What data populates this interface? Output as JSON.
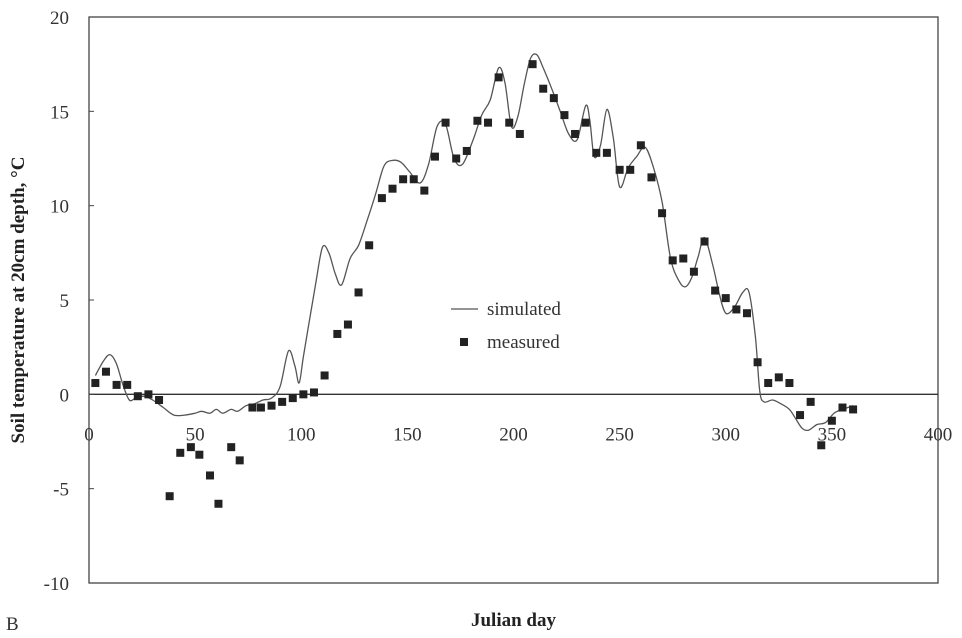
{
  "panel_label": "B",
  "chart_data": {
    "type": "line",
    "title": "",
    "xlabel": "Julian day",
    "ylabel": "Soil temperature at 20cm depth, °C",
    "xlim": [
      0,
      400
    ],
    "ylim": [
      -10,
      20
    ],
    "x_ticks": [
      0,
      50,
      100,
      150,
      200,
      250,
      300,
      350,
      400
    ],
    "y_ticks": [
      -10,
      -5,
      0,
      5,
      10,
      15,
      20
    ],
    "zero_line": true,
    "grid": false,
    "legend_position": "center",
    "series": [
      {
        "name": "simulated",
        "style": "line",
        "color": "#555555",
        "x": [
          3,
          7,
          10,
          13,
          16,
          19,
          22,
          26,
          30,
          35,
          40,
          45,
          50,
          53,
          57,
          60,
          63,
          67,
          70,
          74,
          78,
          82,
          86,
          90,
          94,
          97,
          99,
          101,
          104,
          107,
          110,
          113,
          116,
          119,
          123,
          127,
          131,
          135,
          139,
          143,
          147,
          151,
          156,
          160,
          164,
          168,
          172,
          176,
          181,
          185,
          189,
          193,
          196,
          199,
          202,
          205,
          208,
          211,
          214,
          218,
          222,
          226,
          230,
          234,
          236,
          238,
          241,
          244,
          247,
          250,
          254,
          258,
          262,
          266,
          270,
          274,
          278,
          281,
          284,
          287,
          290,
          294,
          297,
          300,
          304,
          308,
          311,
          314,
          316,
          318,
          322,
          326,
          330,
          333,
          336,
          339,
          343,
          347,
          351,
          355,
          360
        ],
        "y": [
          1.0,
          1.8,
          2.1,
          1.6,
          0.5,
          -0.3,
          -0.2,
          -0.1,
          -0.3,
          -0.7,
          -1.1,
          -1.1,
          -1.0,
          -0.9,
          -1.0,
          -0.8,
          -1.0,
          -0.8,
          -0.9,
          -0.6,
          -0.5,
          -0.3,
          -0.2,
          0.4,
          2.3,
          1.5,
          0.6,
          2.0,
          4.0,
          6.0,
          7.8,
          7.5,
          6.4,
          5.8,
          7.2,
          7.9,
          9.2,
          10.6,
          12.1,
          12.4,
          12.3,
          11.8,
          11.2,
          12.2,
          14.2,
          14.3,
          12.5,
          12.2,
          13.5,
          14.8,
          15.6,
          17.3,
          16.5,
          14.2,
          14.7,
          16.4,
          17.8,
          18.0,
          17.3,
          16.2,
          15.0,
          13.8,
          13.5,
          15.3,
          14.5,
          12.6,
          13.2,
          15.1,
          13.6,
          11.0,
          12.0,
          12.6,
          13.1,
          12.0,
          10.2,
          7.2,
          6.0,
          5.7,
          6.2,
          7.3,
          8.3,
          6.8,
          5.3,
          4.3,
          4.6,
          5.4,
          5.4,
          3.0,
          0.2,
          -0.4,
          -0.3,
          -0.5,
          -0.8,
          -1.3,
          -1.8,
          -1.9,
          -1.6,
          -1.5,
          -1.0,
          -0.8,
          -0.6
        ]
      },
      {
        "name": "measured",
        "style": "square-marker",
        "color": "#222222",
        "x": [
          3,
          8,
          13,
          18,
          23,
          28,
          33,
          38,
          43,
          48,
          52,
          57,
          61,
          67,
          71,
          77,
          81,
          86,
          91,
          96,
          101,
          106,
          111,
          117,
          122,
          127,
          132,
          138,
          143,
          148,
          153,
          158,
          163,
          168,
          173,
          178,
          183,
          188,
          193,
          198,
          203,
          209,
          214,
          219,
          224,
          229,
          234,
          239,
          244,
          250,
          255,
          260,
          265,
          270,
          275,
          280,
          285,
          290,
          295,
          300,
          305,
          310,
          315,
          320,
          325,
          330,
          335,
          340,
          345,
          350,
          355,
          360
        ],
        "y": [
          0.6,
          1.2,
          0.5,
          0.5,
          -0.1,
          0.0,
          -0.3,
          -5.4,
          -3.1,
          -2.8,
          -3.2,
          -4.3,
          -5.8,
          -2.8,
          -3.5,
          -0.7,
          -0.7,
          -0.6,
          -0.4,
          -0.2,
          0.0,
          0.1,
          1.0,
          3.2,
          3.7,
          5.4,
          7.9,
          10.4,
          10.9,
          11.4,
          11.4,
          10.8,
          12.6,
          14.4,
          12.5,
          12.9,
          14.5,
          14.4,
          16.8,
          14.4,
          13.8,
          17.5,
          16.2,
          15.7,
          14.8,
          13.8,
          14.4,
          12.8,
          12.8,
          11.9,
          11.9,
          13.2,
          11.5,
          9.6,
          7.1,
          7.2,
          6.5,
          8.1,
          5.5,
          5.1,
          4.5,
          4.3,
          1.7,
          0.6,
          0.9,
          0.6,
          -1.1,
          -0.4,
          -2.7,
          -1.4,
          -0.7,
          -0.8
        ]
      }
    ]
  }
}
